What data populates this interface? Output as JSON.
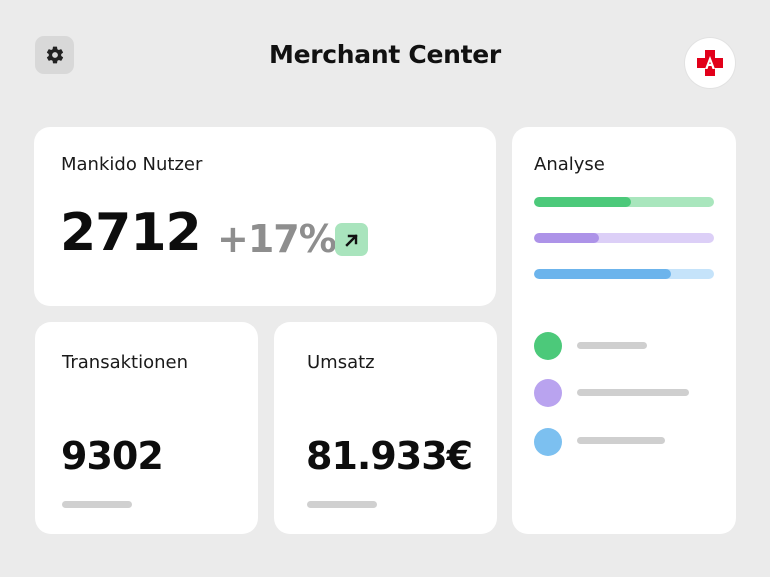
{
  "header": {
    "title": "Merchant Center",
    "settings_icon": "gear-icon",
    "logo_icon": "apotheke-logo-icon"
  },
  "cards": {
    "users": {
      "label": "Mankido Nutzer",
      "value": "2712",
      "growth": "+17%",
      "growth_icon": "arrow-up-right-icon"
    },
    "transactions": {
      "label": "Transaktionen",
      "value": "9302"
    },
    "revenue": {
      "label": "Umsatz",
      "value": "81.933€"
    },
    "analysis": {
      "label": "Analyse",
      "bars": [
        {
          "fill": 0.54,
          "color": "#4cc97a",
          "track": "#a9e6bd"
        },
        {
          "fill": 0.36,
          "color": "#ad93e8",
          "track": "#dccff7"
        },
        {
          "fill": 0.76,
          "color": "#6cb4ec",
          "track": "#c5e3fa"
        }
      ],
      "legend": [
        {
          "color": "#4cc97a",
          "line": 0.39
        },
        {
          "color": "#b9a3ef",
          "line": 0.62
        },
        {
          "color": "#7cc0f0",
          "line": 0.49
        }
      ]
    }
  },
  "colors": {
    "background": "#ebebeb",
    "card": "#ffffff",
    "growth_badge": "#a9e4bd",
    "logo_red": "#e2001a"
  }
}
